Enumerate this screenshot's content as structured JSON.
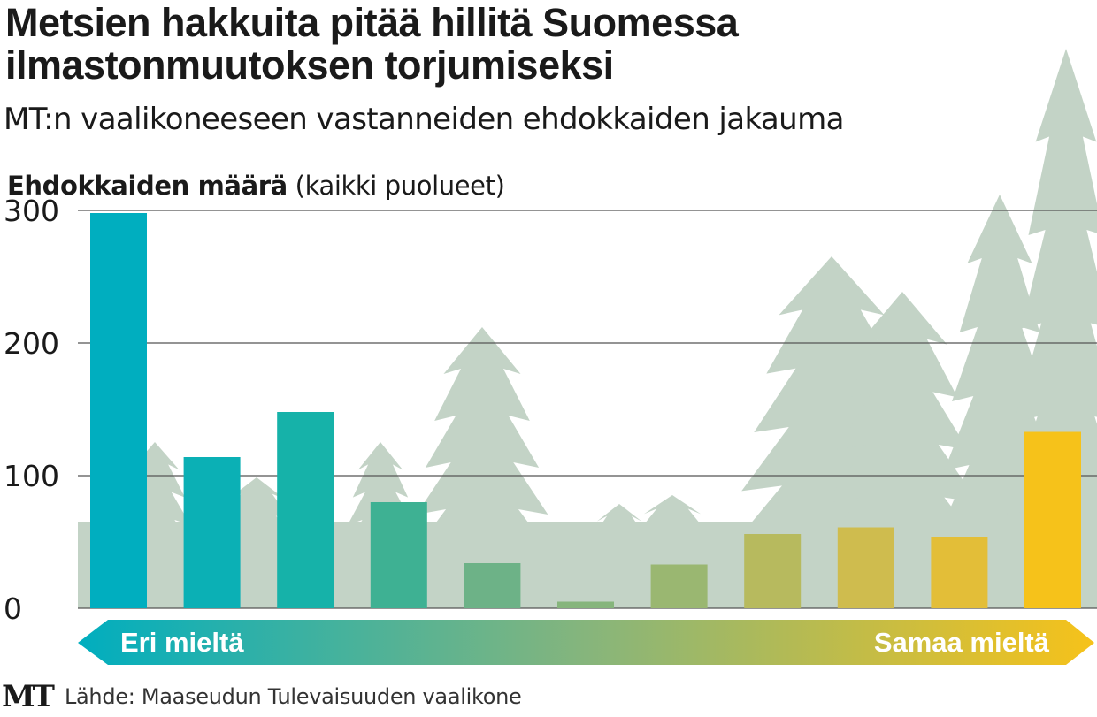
{
  "title": "Metsien hakkuita pitää hillitä Suomessa ilmastonmuutoksen torjumiseksi",
  "subtitle": "MT:n vaalikoneeseen vastanneiden ehdokkaiden jakauma",
  "ylabel_bold": "Ehdokkaiden määrä",
  "ylabel_rest": "(kaikki puolueet)",
  "scale": {
    "left_label": "Eri mieltä",
    "right_label": "Samaa mieltä"
  },
  "source": "Lähde: Maaseudun Tulevaisuuden vaalikone",
  "logo": "MT",
  "colors": {
    "tree_silhouette": "#c3d3c6",
    "gridline": "#555555",
    "gradient_start": "#00aebf",
    "gradient_mid": "#86b57c",
    "gradient_end": "#f6c21a"
  },
  "chart_data": {
    "type": "bar",
    "title": "Metsien hakkuita pitää hillitä Suomessa ilmastonmuutoksen torjumiseksi",
    "ylabel": "Ehdokkaiden määrä (kaikki puolueet)",
    "xlabel": "",
    "ylim": [
      0,
      300
    ],
    "yticks": [
      0,
      100,
      200,
      300
    ],
    "grid": true,
    "values": [
      298,
      114,
      148,
      80,
      34,
      5,
      33,
      56,
      61,
      54,
      133
    ],
    "colors": [
      "#00aebf",
      "#0bb0b5",
      "#16b2a9",
      "#3eb193",
      "#6db287",
      "#86b57c",
      "#9ab771",
      "#b7ba5e",
      "#cfbc4e",
      "#e3be38",
      "#f6c21a"
    ]
  }
}
